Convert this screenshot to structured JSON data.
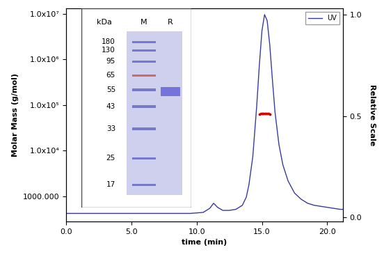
{
  "chart_data": {
    "type": "line",
    "x_label": "time (min)",
    "y_label": "Molar Mass (g/mol)",
    "y2_label": "Relative Scale",
    "log": "y",
    "legend": "upper right",
    "grid": false,
    "xlim": [
      0,
      21.2
    ],
    "xticks": [
      {
        "value": 0,
        "label": "0.0"
      },
      {
        "value": 5,
        "label": "5.0"
      },
      {
        "value": 10,
        "label": "10.0"
      },
      {
        "value": 15,
        "label": "15.0"
      },
      {
        "value": 20,
        "label": "20.0"
      }
    ],
    "ylim": [
      280,
      13000000
    ],
    "yticks": [
      {
        "value": 1000,
        "label": "1000.000"
      },
      {
        "value": 10000,
        "label": "1.0x10⁴"
      },
      {
        "value": 100000,
        "label": "1.0x10⁵"
      },
      {
        "value": 1000000,
        "label": "1.0x10⁶"
      },
      {
        "value": 10000000,
        "label": "1.0x10⁷"
      }
    ],
    "y2lim": [
      -0.02,
      1.03
    ],
    "y2ticks": [
      {
        "value": 0,
        "label": "0.0"
      },
      {
        "value": 0.5,
        "label": "0.5"
      },
      {
        "value": 1,
        "label": "1.0"
      }
    ],
    "series": [
      {
        "name": "UV",
        "color": "#3a3a9e",
        "axis": "y2",
        "type": "line",
        "line_style": "solid",
        "x": [
          0,
          2,
          4,
          6,
          8,
          9.5,
          10.5,
          11.0,
          11.3,
          11.6,
          12.0,
          12.5,
          13.0,
          13.5,
          13.8,
          14.0,
          14.3,
          14.6,
          14.8,
          15.0,
          15.2,
          15.4,
          15.6,
          15.8,
          16.0,
          16.3,
          16.6,
          17.0,
          17.5,
          18.0,
          18.5,
          19.0,
          19.5,
          20.0,
          20.5,
          21.0,
          21.2
        ],
        "values": [
          0.02,
          0.02,
          0.02,
          0.02,
          0.02,
          0.02,
          0.025,
          0.045,
          0.07,
          0.05,
          0.035,
          0.035,
          0.04,
          0.06,
          0.1,
          0.16,
          0.3,
          0.55,
          0.75,
          0.92,
          1.0,
          0.97,
          0.85,
          0.68,
          0.52,
          0.36,
          0.26,
          0.18,
          0.12,
          0.09,
          0.07,
          0.06,
          0.055,
          0.05,
          0.045,
          0.04,
          0.04
        ]
      },
      {
        "color": "#d40000",
        "type": "scatter",
        "marker": "point",
        "x": [
          14.8,
          14.9,
          15.0,
          15.1,
          15.2,
          15.3,
          15.4,
          15.5,
          15.6
        ],
        "values": [
          63000,
          64000,
          65000,
          64000,
          65000,
          64000,
          66000,
          64000,
          63000
        ]
      }
    ],
    "inset": {
      "header": "kDa",
      "lanes": [
        "M",
        "R"
      ],
      "ladder": [
        180,
        130,
        95,
        65,
        55,
        43,
        33,
        25,
        17
      ]
    }
  }
}
